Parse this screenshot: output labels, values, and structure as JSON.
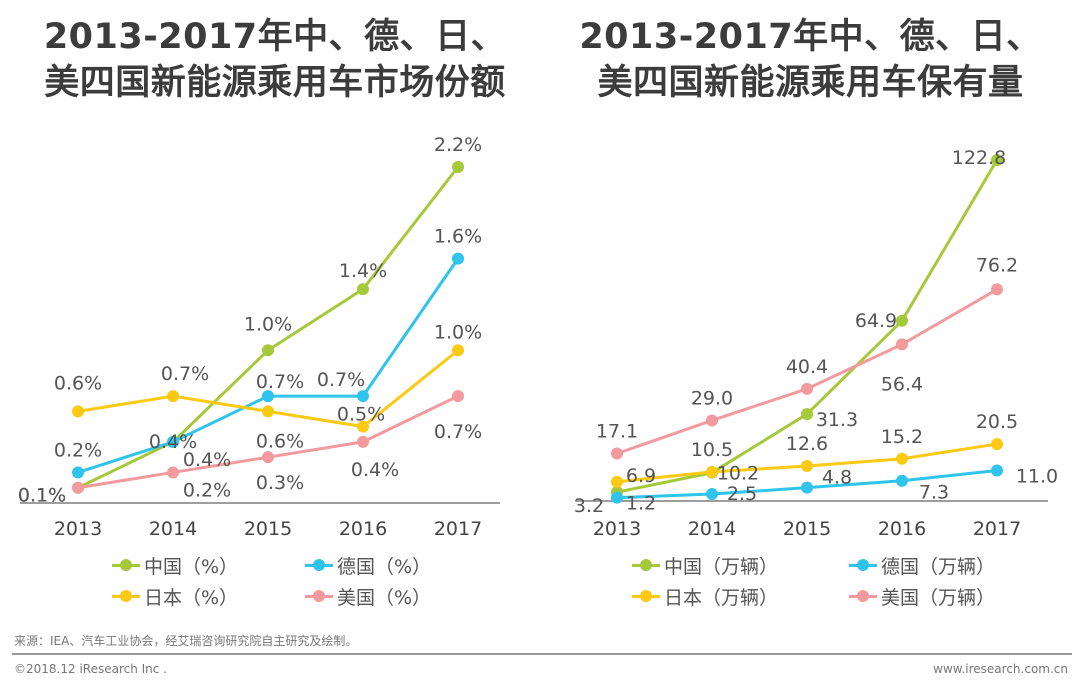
{
  "chart_data": [
    {
      "type": "line",
      "title": "2013-2017年中、德、日、美四国新能源乘用车市场份额",
      "title_lines": [
        "2013-2017年中、德、日、",
        "美四国新能源乘用车市场份额"
      ],
      "categories": [
        "2013",
        "2014",
        "2015",
        "2016",
        "2017"
      ],
      "xlabel": "",
      "ylabel": "",
      "ylim": [
        0,
        2.4
      ],
      "grid": false,
      "legend_position": "bottom",
      "series": [
        {
          "name": "中国（%）",
          "color": "#a5c93a",
          "values": [
            0.1,
            0.4,
            1.0,
            1.4,
            2.2
          ],
          "labels": [
            "0.1%",
            "0.4%",
            "1.0%",
            "1.4%",
            "2.2%"
          ]
        },
        {
          "name": "德国（%）",
          "color": "#2ec4ec",
          "values": [
            0.2,
            0.4,
            0.7,
            0.7,
            1.6
          ],
          "labels": [
            "0.2%",
            "0.4%",
            "0.7%",
            "0.7%",
            "1.6%"
          ]
        },
        {
          "name": "日本（%）",
          "color": "#fcc913",
          "values": [
            0.6,
            0.7,
            0.6,
            0.5,
            1.0
          ],
          "labels": [
            "0.6%",
            "0.7%",
            "0.6%",
            "0.5%",
            "1.0%"
          ]
        },
        {
          "name": "美国（%）",
          "color": "#f29a9e",
          "values": [
            0.1,
            0.2,
            0.3,
            0.4,
            0.7
          ],
          "labels": [
            "0.1%",
            "0.2%",
            "0.3%",
            "0.4%",
            "0.7%"
          ]
        }
      ]
    },
    {
      "type": "line",
      "title": "2013-2017年中、德、日、美四国新能源乘用车保有量",
      "title_lines": [
        "2013-2017年中、德、日、",
        "美四国新能源乘用车保有量"
      ],
      "categories": [
        "2013",
        "2014",
        "2015",
        "2016",
        "2017"
      ],
      "xlabel": "",
      "ylabel": "",
      "ylim": [
        0,
        130
      ],
      "grid": false,
      "legend_position": "bottom",
      "series": [
        {
          "name": "中国（万辆）",
          "color": "#a5c93a",
          "values": [
            3.2,
            10.2,
            31.3,
            64.9,
            122.8
          ],
          "labels": [
            "3.2",
            "10.2",
            "31.3",
            "64.9",
            "122.8"
          ]
        },
        {
          "name": "德国（万辆）",
          "color": "#2ec4ec",
          "values": [
            1.2,
            2.5,
            4.8,
            7.3,
            11.0
          ],
          "labels": [
            "1.2",
            "2.5",
            "4.8",
            "7.3",
            "11.0"
          ]
        },
        {
          "name": "日本（万辆）",
          "color": "#fcc913",
          "values": [
            6.9,
            10.5,
            12.6,
            15.2,
            20.5
          ],
          "labels": [
            "6.9",
            "10.5",
            "12.6",
            "15.2",
            "20.5"
          ]
        },
        {
          "name": "美国（万辆）",
          "color": "#f29a9e",
          "values": [
            17.1,
            29.0,
            40.4,
            56.4,
            76.2
          ],
          "labels": [
            "17.1",
            "29.0",
            "40.4",
            "56.4",
            "76.2"
          ]
        }
      ]
    }
  ],
  "footer": {
    "source": "来源：IEA、汽车工业协会，经艾瑞咨询研究院自主研究及绘制。",
    "copyright": "©2018.12 iResearch Inc .",
    "website": "www.iresearch.com.cn"
  }
}
